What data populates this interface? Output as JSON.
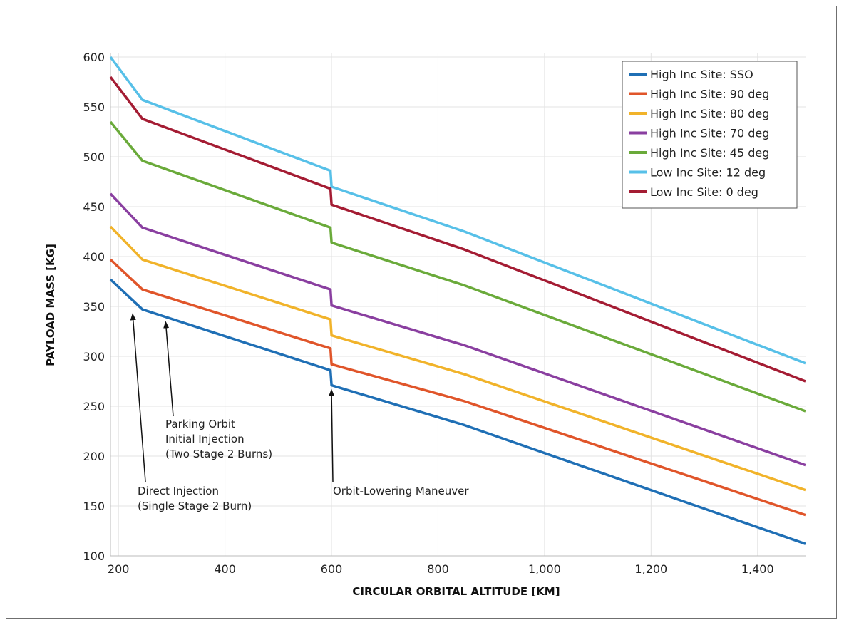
{
  "chart_data": {
    "type": "line",
    "xlabel": "CIRCULAR ORBITAL ALTITUDE [KM]",
    "ylabel": "PAYLOAD MASS [KG]",
    "xlim": [
      185,
      1490
    ],
    "ylim": [
      100,
      600
    ],
    "xticks": [
      200,
      400,
      600,
      800,
      1000,
      1200,
      1400
    ],
    "xtick_labels": [
      "200",
      "400",
      "600",
      "800",
      "1,000",
      "1,200",
      "1,400"
    ],
    "yticks": [
      100,
      150,
      200,
      250,
      300,
      350,
      400,
      450,
      500,
      550,
      600
    ],
    "ytick_labels": [
      "100",
      "150",
      "200",
      "250",
      "300",
      "350",
      "400",
      "450",
      "500",
      "550",
      "600"
    ],
    "grid": true,
    "legend_position": "top-right",
    "x": [
      185,
      245,
      598,
      600,
      850,
      1490
    ],
    "series": [
      {
        "name": "High Inc Site: SSO",
        "color": "#1f6fb5",
        "values": [
          377,
          347,
          286,
          271,
          231,
          112
        ]
      },
      {
        "name": "High Inc Site: 90 deg",
        "color": "#e0552a",
        "values": [
          397,
          367,
          308,
          292,
          255,
          141
        ]
      },
      {
        "name": "High Inc Site: 80 deg",
        "color": "#f1b32a",
        "values": [
          430,
          397,
          337,
          321,
          282,
          166
        ]
      },
      {
        "name": "High Inc Site: 70 deg",
        "color": "#8a3fa0",
        "values": [
          463,
          429,
          367,
          351,
          311,
          191
        ]
      },
      {
        "name": "High Inc Site: 45 deg",
        "color": "#6aaa3a",
        "values": [
          535,
          496,
          429,
          414,
          371,
          245
        ]
      },
      {
        "name": "Low Inc Site: 12 deg",
        "color": "#57c0e8",
        "values": [
          600,
          557,
          486,
          470,
          425,
          293
        ]
      },
      {
        "name": "Low Inc Site: 0 deg",
        "color": "#a41c33",
        "values": [
          580,
          538,
          468,
          452,
          407,
          275
        ]
      }
    ],
    "annotations": [
      {
        "id": "direct",
        "lines": [
          "Direct Injection",
          "(Single Stage 2 Burn)"
        ],
        "target": [
          227,
          347
        ]
      },
      {
        "id": "parking",
        "lines": [
          "Parking Orbit",
          "Initial Injection",
          "(Two Stage 2 Burns)"
        ],
        "target": [
          289,
          339
        ]
      },
      {
        "id": "lowering",
        "lines": [
          "Orbit-Lowering Maneuver"
        ],
        "target": [
          600,
          271
        ]
      }
    ]
  }
}
